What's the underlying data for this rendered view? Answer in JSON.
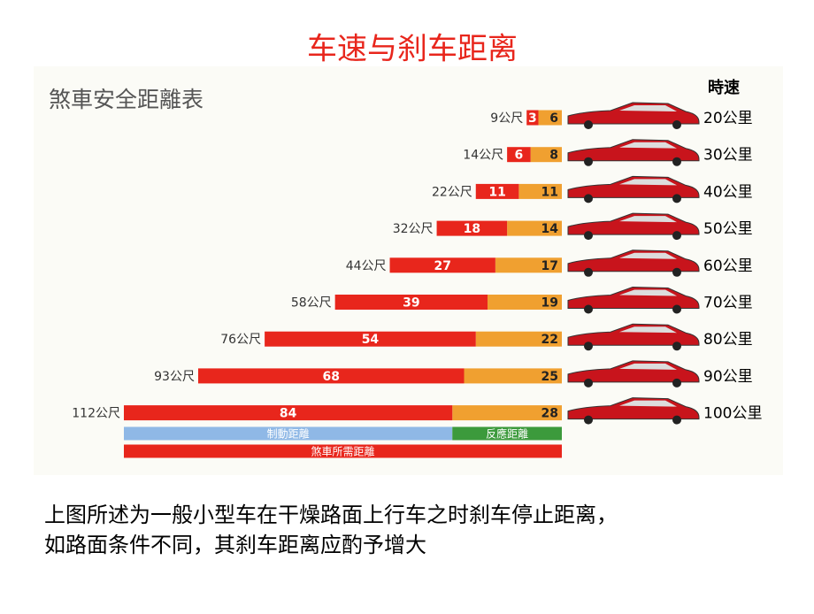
{
  "chart_data": {
    "type": "bar",
    "orientation": "horizontal",
    "stacked": true,
    "title": "车速与刹车距离",
    "subtitle": "煞車安全距離表",
    "category_header": "時速",
    "categories": [
      "20公里",
      "30公里",
      "40公里",
      "50公里",
      "60公里",
      "70公里",
      "80公里",
      "90公里",
      "100公里"
    ],
    "series": [
      {
        "name": "制動距離",
        "color": "#e8261c",
        "legend_color": "#8fb8e6",
        "values": [
          3,
          6,
          11,
          18,
          27,
          39,
          54,
          68,
          84
        ]
      },
      {
        "name": "反應距離",
        "color": "#f0a030",
        "legend_color": "#3c9a3c",
        "values": [
          6,
          8,
          11,
          14,
          17,
          19,
          22,
          25,
          28
        ]
      }
    ],
    "total_name": "煞車所需距離",
    "total_color": "#e8261c",
    "total_labels": [
      "9公尺",
      "14公尺",
      "22公尺",
      "32公尺",
      "44公尺",
      "58公尺",
      "76公尺",
      "93公尺",
      "112公尺"
    ],
    "note": [
      "上图所述为一般小型车在干燥路面上行车之时刹车停止距离，",
      "如路面条件不同，其刹车距离应酌予增大"
    ]
  }
}
